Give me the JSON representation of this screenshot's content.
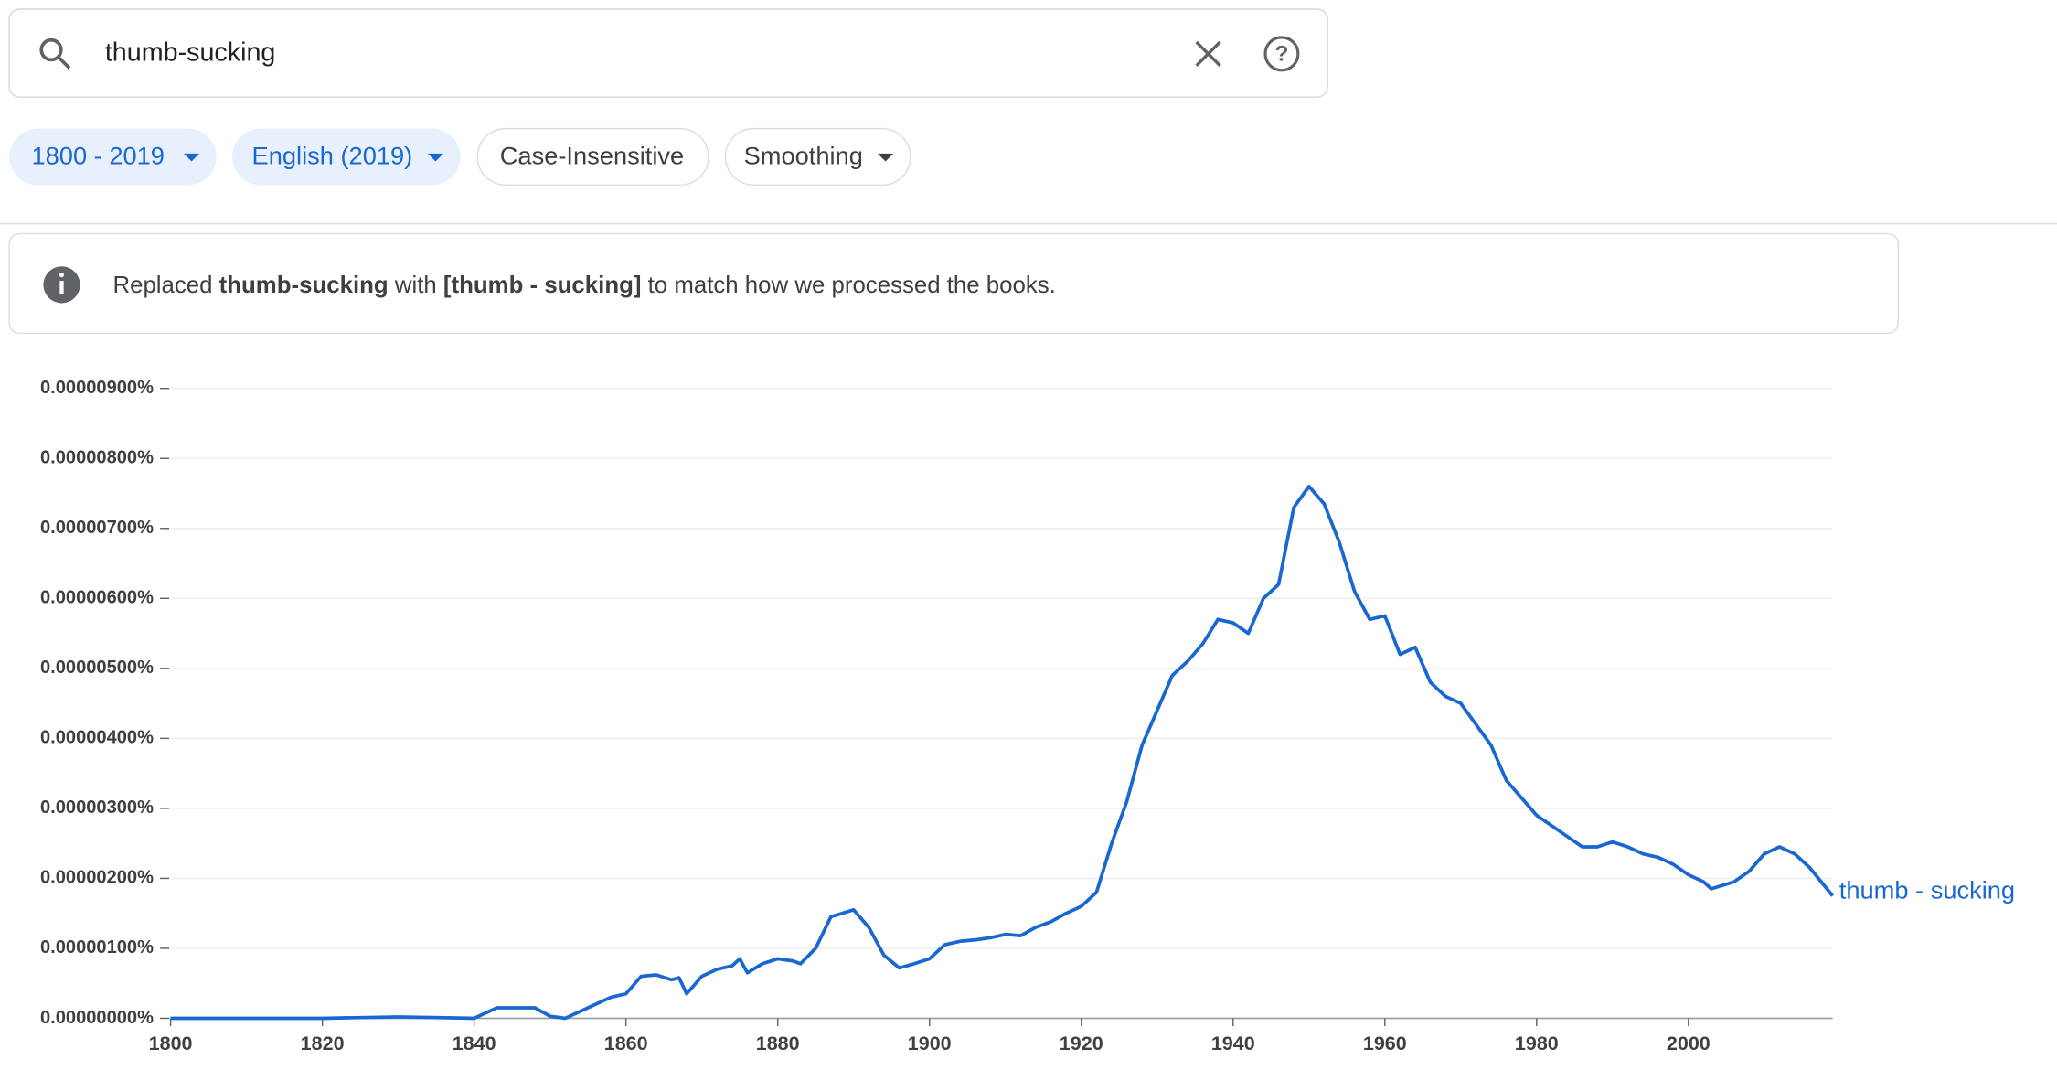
{
  "search": {
    "query": "thumb-sucking"
  },
  "chips": [
    "1800 - 2019",
    "English (2019)",
    "Case-Insensitive",
    "Smoothing"
  ],
  "notice": {
    "prefix": "Replaced",
    "original": "thumb-sucking",
    "middle": "with",
    "replacement": "[thumb - sucking]",
    "suffix": "to match how we processed the books."
  },
  "chart_data": {
    "type": "line",
    "x": [
      1800,
      1810,
      1820,
      1830,
      1840,
      1843,
      1848,
      1850,
      1852,
      1855,
      1858,
      1860,
      1862,
      1864,
      1866,
      1867,
      1868,
      1870,
      1872,
      1874,
      1875,
      1876,
      1878,
      1880,
      1882,
      1883,
      1885,
      1887,
      1890,
      1892,
      1894,
      1896,
      1898,
      1900,
      1902,
      1904,
      1906,
      1908,
      1910,
      1912,
      1914,
      1916,
      1918,
      1920,
      1922,
      1924,
      1926,
      1928,
      1930,
      1932,
      1934,
      1936,
      1938,
      1940,
      1942,
      1944,
      1946,
      1948,
      1950,
      1952,
      1954,
      1956,
      1958,
      1960,
      1962,
      1964,
      1966,
      1968,
      1970,
      1972,
      1974,
      1976,
      1978,
      1980,
      1982,
      1984,
      1986,
      1988,
      1990,
      1992,
      1994,
      1996,
      1998,
      2000,
      2002,
      2003,
      2006,
      2008,
      2010,
      2012,
      2014,
      2016,
      2019
    ],
    "series": [
      {
        "name": "thumb - sucking",
        "color": "#1967d2",
        "values": [
          0,
          0,
          0,
          2e-08,
          0,
          1.5e-07,
          1.5e-07,
          3e-08,
          0,
          1.5e-07,
          3e-07,
          3.5e-07,
          6e-07,
          6.2e-07,
          5.5e-07,
          5.8e-07,
          3.5e-07,
          6e-07,
          7e-07,
          7.5e-07,
          8.5e-07,
          6.5e-07,
          7.8e-07,
          8.5e-07,
          8.2e-07,
          7.8e-07,
          1e-06,
          1.45e-06,
          1.55e-06,
          1.3e-06,
          9e-07,
          7.2e-07,
          7.8e-07,
          8.5e-07,
          1.05e-06,
          1.1e-06,
          1.12e-06,
          1.15e-06,
          1.2e-06,
          1.18e-06,
          1.3e-06,
          1.38e-06,
          1.5e-06,
          1.6e-06,
          1.8e-06,
          2.5e-06,
          3.1e-06,
          3.9e-06,
          4.4e-06,
          4.9e-06,
          5.1e-06,
          5.35e-06,
          5.7e-06,
          5.65e-06,
          5.5e-06,
          6e-06,
          6.2e-06,
          7.3e-06,
          7.6e-06,
          7.35e-06,
          6.8e-06,
          6.1e-06,
          5.7e-06,
          5.75e-06,
          5.2e-06,
          5.3e-06,
          4.8e-06,
          4.6e-06,
          4.5e-06,
          4.2e-06,
          3.9e-06,
          3.4e-06,
          3.15e-06,
          2.9e-06,
          2.75e-06,
          2.6e-06,
          2.45e-06,
          2.45e-06,
          2.52e-06,
          2.45e-06,
          2.35e-06,
          2.3e-06,
          2.2e-06,
          2.05e-06,
          1.95e-06,
          1.85e-06,
          1.95e-06,
          2.1e-06,
          2.35e-06,
          2.45e-06,
          2.35e-06,
          2.15e-06,
          1.75e-06
        ]
      }
    ],
    "xlim": [
      1800,
      2019
    ],
    "xticks": [
      1800,
      1820,
      1840,
      1860,
      1880,
      1900,
      1920,
      1940,
      1960,
      1980,
      2000
    ],
    "ylim": [
      0,
      9e-06
    ],
    "yticks": [
      {
        "value": 0,
        "label": "0.00000000%"
      },
      {
        "value": 1e-06,
        "label": "0.00000100%"
      },
      {
        "value": 2e-06,
        "label": "0.00000200%"
      },
      {
        "value": 3e-06,
        "label": "0.00000300%"
      },
      {
        "value": 4e-06,
        "label": "0.00000400%"
      },
      {
        "value": 5e-06,
        "label": "0.00000500%"
      },
      {
        "value": 6e-06,
        "label": "0.00000600%"
      },
      {
        "value": 7e-06,
        "label": "0.00000700%"
      },
      {
        "value": 8e-06,
        "label": "0.00000800%"
      },
      {
        "value": 9e-06,
        "label": "0.00000900%"
      }
    ],
    "grid": true
  }
}
